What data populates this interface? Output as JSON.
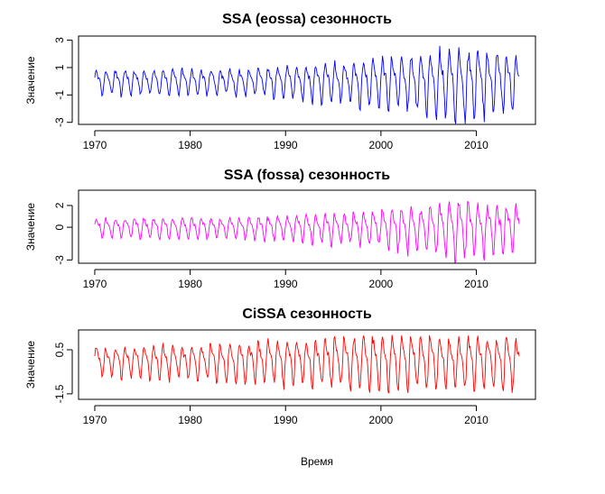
{
  "xlabel": "Время",
  "chart_data": [
    {
      "type": "line",
      "title": "SSA (eossa) сезонность",
      "xlabel": "",
      "ylabel": "Значение",
      "x_range": [
        1970,
        2014.5
      ],
      "xlim": [
        1968.3,
        2016.2
      ],
      "ylim": [
        -3.15,
        3.3
      ],
      "x_ticks": [
        1970,
        1980,
        1990,
        2000,
        2010
      ],
      "y_ticks": [
        -3,
        -1,
        1,
        3
      ],
      "color": "#0000ff",
      "period_months": 12,
      "amplitude_profile": [
        [
          1970,
          0.9
        ],
        [
          1975,
          1.0
        ],
        [
          1985,
          1.0
        ],
        [
          1990,
          1.2
        ],
        [
          1995,
          1.5
        ],
        [
          2000,
          1.8
        ],
        [
          2004,
          2.2
        ],
        [
          2008,
          2.8
        ],
        [
          2012,
          2.3
        ],
        [
          2014.5,
          2.1
        ]
      ],
      "grid": false,
      "legend": "none"
    },
    {
      "type": "line",
      "title": "SSA (fossa) сезонность",
      "xlabel": "",
      "ylabel": "Значение",
      "x_range": [
        1970,
        2014.5
      ],
      "xlim": [
        1968.3,
        2016.2
      ],
      "ylim": [
        -3.3,
        3.4
      ],
      "x_ticks": [
        1970,
        1980,
        1990,
        2000,
        2010
      ],
      "y_ticks": [
        -3,
        0,
        2
      ],
      "color": "#ff00ff",
      "period_months": 12,
      "amplitude_profile": [
        [
          1970,
          0.9
        ],
        [
          1975,
          1.0
        ],
        [
          1985,
          1.0
        ],
        [
          1990,
          1.2
        ],
        [
          1995,
          1.5
        ],
        [
          2000,
          1.8
        ],
        [
          2004,
          2.2
        ],
        [
          2008,
          2.8
        ],
        [
          2012,
          2.3
        ],
        [
          2014.5,
          2.1
        ]
      ],
      "grid": false,
      "legend": "none"
    },
    {
      "type": "line",
      "title": "CiSSA сезонность",
      "xlabel": "",
      "ylabel": "Значение",
      "x_range": [
        1970,
        2014.5
      ],
      "xlim": [
        1968.3,
        2016.2
      ],
      "ylim": [
        -1.75,
        1.4
      ],
      "x_ticks": [
        1970,
        1980,
        1990,
        2000,
        2010
      ],
      "y_ticks": [
        -1.5,
        0.5
      ],
      "color": "#ff0000",
      "period_months": 12,
      "amplitude_profile": [
        [
          1970,
          0.7
        ],
        [
          1980,
          0.85
        ],
        [
          1990,
          1.05
        ],
        [
          1997,
          1.25
        ],
        [
          2005,
          1.3
        ],
        [
          2014.5,
          1.2
        ]
      ],
      "grid": false,
      "legend": "none"
    }
  ]
}
